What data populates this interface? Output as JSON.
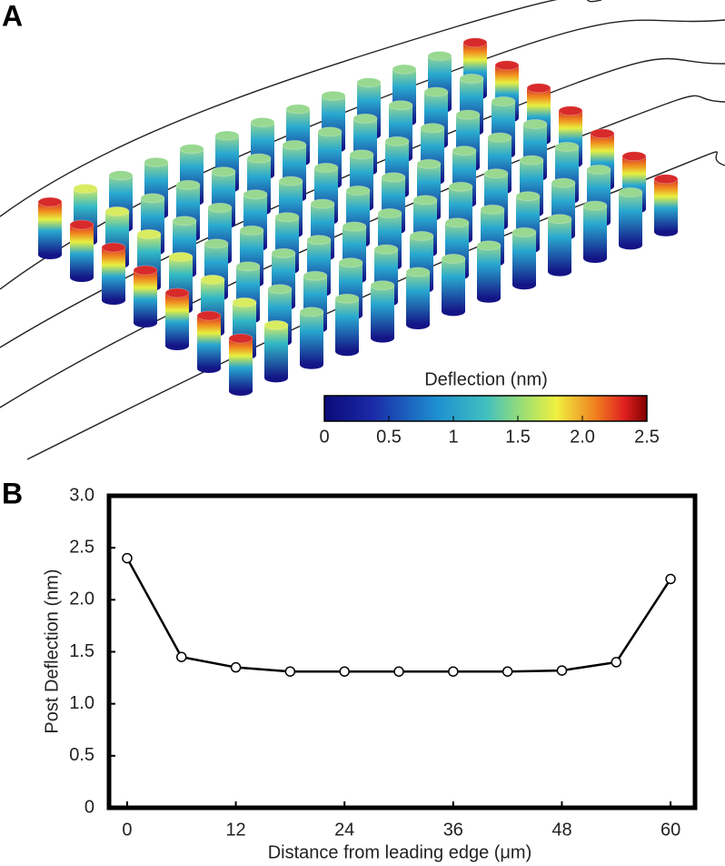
{
  "panel_labels": [
    "A",
    "B"
  ],
  "colorbar": {
    "title": "Deflection (nm)",
    "lim": [
      0,
      2.5
    ],
    "ticks": [
      0,
      0.5,
      1,
      1.5,
      {
        "value": 2,
        "label": "2.0"
      },
      2.5
    ]
  },
  "chart_data": {
    "type": "line",
    "x": [
      0,
      6,
      12,
      18,
      24,
      30,
      36,
      42,
      48,
      54,
      60
    ],
    "series": [
      {
        "color": "#000000",
        "values": [
          2.4,
          1.45,
          1.35,
          1.31,
          1.31,
          1.31,
          1.31,
          1.31,
          1.32,
          1.4,
          2.2
        ]
      }
    ],
    "x_label": "Distance from leading edge (μm)",
    "y_label": "Post Deflection (nm)",
    "xlim": [
      -2,
      62.7
    ],
    "xticks": [
      0,
      12,
      24,
      36,
      48,
      60
    ],
    "ylim": [
      0,
      3
    ],
    "yticks": [
      0,
      0.5,
      {
        "value": 1,
        "label": "1.0"
      },
      1.5,
      {
        "value": 2,
        "label": "2.0"
      },
      2.5,
      {
        "value": 3,
        "label": "3.0"
      }
    ]
  }
}
